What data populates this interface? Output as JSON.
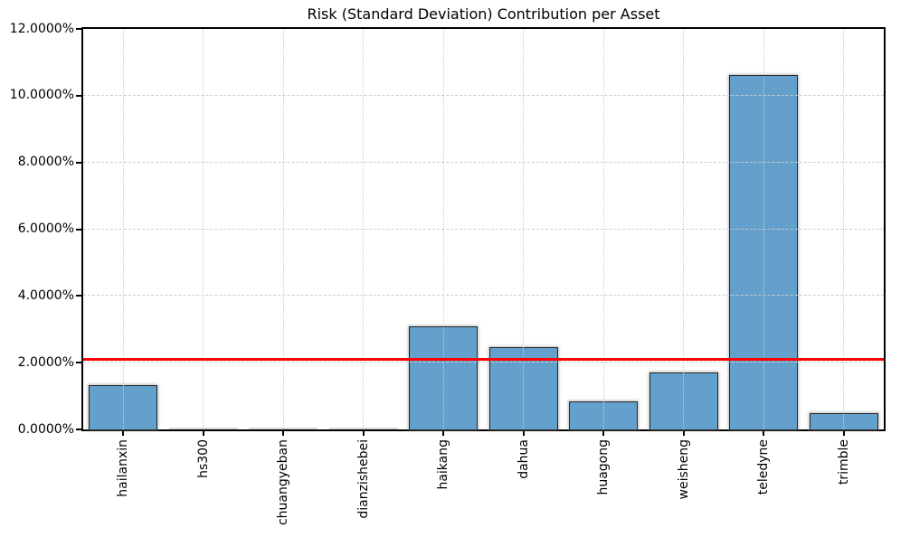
{
  "chart_data": {
    "type": "bar",
    "title": "Risk (Standard Deviation) Contribution per Asset",
    "unit": "%",
    "categories": [
      "hailanxin",
      "hs300",
      "chuangyeban",
      "dianzishebei",
      "haikang",
      "dahua",
      "huagong",
      "weisheng",
      "teledyne",
      "trimble"
    ],
    "values": [
      1.32,
      0.0,
      0.0,
      0.0,
      3.1,
      2.47,
      0.83,
      1.7,
      10.61,
      0.5
    ],
    "xlabel": "",
    "ylabel": "",
    "ylim": [
      0,
      12
    ],
    "yticks": [
      0,
      2,
      4,
      6,
      8,
      10,
      12
    ],
    "ytick_labels": [
      "0.0000%",
      "2.0000%",
      "4.0000%",
      "6.0000%",
      "8.0000%",
      "10.0000%",
      "12.0000%"
    ],
    "threshold_line": {
      "value": 2.1,
      "color": "#ff0000"
    },
    "grid": true,
    "legend_position": "none",
    "colors": {
      "bar_fill": "#63a0cb",
      "bar_edge": "#262626",
      "grid": "#cccccc",
      "axis": "#000000",
      "text": "#000000",
      "background": "#ffffff"
    }
  }
}
